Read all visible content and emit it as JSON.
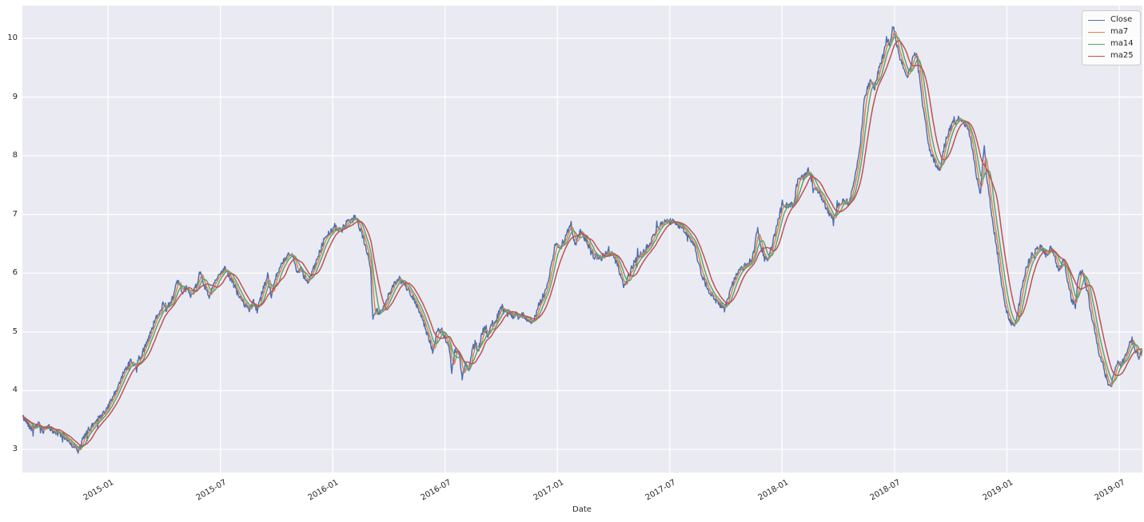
{
  "figure": {
    "background": "#ffffff",
    "plot_background": "#eaeaf2",
    "grid_color": "#ffffff",
    "text_color": "#262626",
    "legend_bg": "#ffffff",
    "legend_border": "#cccccc"
  },
  "chart_data": {
    "type": "line",
    "title": "",
    "xlabel": "Date",
    "ylabel": "",
    "grid": true,
    "legend_position": "upper right",
    "x_unit": "decimal_year",
    "xlim": [
      2014.619,
      2019.603
    ],
    "ylim": [
      2.606,
      10.557
    ],
    "y_ticks": [
      3,
      4,
      5,
      6,
      7,
      8,
      9,
      10
    ],
    "x_ticks": [
      {
        "t": 2015.0,
        "label": "2015-01"
      },
      {
        "t": 2015.5,
        "label": "2015-07"
      },
      {
        "t": 2016.0,
        "label": "2016-01"
      },
      {
        "t": 2016.5,
        "label": "2016-07"
      },
      {
        "t": 2017.0,
        "label": "2017-01"
      },
      {
        "t": 2017.5,
        "label": "2017-07"
      },
      {
        "t": 2018.0,
        "label": "2018-01"
      },
      {
        "t": 2018.5,
        "label": "2018-07"
      },
      {
        "t": 2019.0,
        "label": "2019-01"
      },
      {
        "t": 2019.5,
        "label": "2019-07"
      }
    ],
    "legend": [
      {
        "label": "Close",
        "color": "#4c72b0"
      },
      {
        "label": "ma7",
        "color": "#dd8452"
      },
      {
        "label": "ma14",
        "color": "#55a868"
      },
      {
        "label": "ma25",
        "color": "#c44e52"
      }
    ],
    "series": [
      {
        "name": "Close",
        "color": "#4c72b0",
        "kind": "raw",
        "noise_amp": 0.055,
        "control_points": [
          [
            2014.62,
            3.55
          ],
          [
            2014.64,
            3.47
          ],
          [
            2014.66,
            3.36
          ],
          [
            2014.69,
            3.43
          ],
          [
            2014.71,
            3.3
          ],
          [
            2014.735,
            3.39
          ],
          [
            2014.76,
            3.3
          ],
          [
            2014.8,
            3.23
          ],
          [
            2014.845,
            3.07
          ],
          [
            2014.868,
            2.96
          ],
          [
            2014.89,
            3.18
          ],
          [
            2014.915,
            3.34
          ],
          [
            2014.94,
            3.46
          ],
          [
            2014.97,
            3.56
          ],
          [
            2015.0,
            3.72
          ],
          [
            2015.025,
            3.9
          ],
          [
            2015.05,
            4.12
          ],
          [
            2015.075,
            4.35
          ],
          [
            2015.1,
            4.5
          ],
          [
            2015.125,
            4.4
          ],
          [
            2015.15,
            4.6
          ],
          [
            2015.175,
            4.86
          ],
          [
            2015.2,
            5.1
          ],
          [
            2015.225,
            5.32
          ],
          [
            2015.245,
            5.48
          ],
          [
            2015.26,
            5.39
          ],
          [
            2015.285,
            5.56
          ],
          [
            2015.31,
            5.85
          ],
          [
            2015.33,
            5.69
          ],
          [
            2015.35,
            5.75
          ],
          [
            2015.37,
            5.62
          ],
          [
            2015.39,
            5.77
          ],
          [
            2015.41,
            6.03
          ],
          [
            2015.43,
            5.76
          ],
          [
            2015.45,
            5.6
          ],
          [
            2015.47,
            5.84
          ],
          [
            2015.49,
            5.92
          ],
          [
            2015.52,
            6.1
          ],
          [
            2015.54,
            5.93
          ],
          [
            2015.56,
            5.8
          ],
          [
            2015.58,
            5.62
          ],
          [
            2015.605,
            5.48
          ],
          [
            2015.63,
            5.38
          ],
          [
            2015.65,
            5.52
          ],
          [
            2015.665,
            5.35
          ],
          [
            2015.69,
            5.75
          ],
          [
            2015.71,
            5.96
          ],
          [
            2015.727,
            5.6
          ],
          [
            2015.75,
            5.96
          ],
          [
            2015.775,
            6.16
          ],
          [
            2015.8,
            6.28
          ],
          [
            2015.82,
            6.38
          ],
          [
            2015.838,
            6.02
          ],
          [
            2015.86,
            6.06
          ],
          [
            2015.887,
            5.84
          ],
          [
            2015.91,
            6.02
          ],
          [
            2015.935,
            6.28
          ],
          [
            2015.96,
            6.55
          ],
          [
            2015.985,
            6.7
          ],
          [
            2016.01,
            6.8
          ],
          [
            2016.035,
            6.71
          ],
          [
            2016.06,
            6.84
          ],
          [
            2016.085,
            6.9
          ],
          [
            2016.1,
            6.96
          ],
          [
            2016.125,
            6.72
          ],
          [
            2016.15,
            6.42
          ],
          [
            2016.168,
            6.1
          ],
          [
            2016.178,
            5.25
          ],
          [
            2016.195,
            5.4
          ],
          [
            2016.21,
            5.28
          ],
          [
            2016.235,
            5.52
          ],
          [
            2016.26,
            5.72
          ],
          [
            2016.28,
            5.84
          ],
          [
            2016.295,
            5.9
          ],
          [
            2016.32,
            5.8
          ],
          [
            2016.345,
            5.68
          ],
          [
            2016.37,
            5.5
          ],
          [
            2016.395,
            5.28
          ],
          [
            2016.42,
            4.95
          ],
          [
            2016.447,
            4.66
          ],
          [
            2016.465,
            5.02
          ],
          [
            2016.485,
            5.02
          ],
          [
            2016.505,
            4.85
          ],
          [
            2016.52,
            4.74
          ],
          [
            2016.529,
            4.3
          ],
          [
            2016.545,
            4.66
          ],
          [
            2016.56,
            4.72
          ],
          [
            2016.576,
            4.22
          ],
          [
            2016.59,
            4.46
          ],
          [
            2016.605,
            4.35
          ],
          [
            2016.62,
            4.69
          ],
          [
            2016.635,
            4.83
          ],
          [
            2016.648,
            4.65
          ],
          [
            2016.662,
            4.96
          ],
          [
            2016.678,
            5.07
          ],
          [
            2016.69,
            4.87
          ],
          [
            2016.705,
            5.17
          ],
          [
            2016.72,
            5.1
          ],
          [
            2016.74,
            5.35
          ],
          [
            2016.755,
            5.42
          ],
          [
            2016.77,
            5.31
          ],
          [
            2016.785,
            5.38
          ],
          [
            2016.8,
            5.26
          ],
          [
            2016.815,
            5.31
          ],
          [
            2016.83,
            5.24
          ],
          [
            2016.845,
            5.29
          ],
          [
            2016.868,
            5.2
          ],
          [
            2016.892,
            5.15
          ],
          [
            2016.92,
            5.5
          ],
          [
            2016.95,
            5.7
          ],
          [
            2016.972,
            6.12
          ],
          [
            2016.99,
            6.48
          ],
          [
            2017.012,
            6.42
          ],
          [
            2017.035,
            6.62
          ],
          [
            2017.06,
            6.86
          ],
          [
            2017.08,
            6.42
          ],
          [
            2017.1,
            6.74
          ],
          [
            2017.13,
            6.54
          ],
          [
            2017.16,
            6.3
          ],
          [
            2017.19,
            6.25
          ],
          [
            2017.22,
            6.35
          ],
          [
            2017.25,
            6.31
          ],
          [
            2017.275,
            6.05
          ],
          [
            2017.298,
            5.75
          ],
          [
            2017.32,
            6.0
          ],
          [
            2017.35,
            6.26
          ],
          [
            2017.38,
            6.35
          ],
          [
            2017.41,
            6.5
          ],
          [
            2017.44,
            6.72
          ],
          [
            2017.47,
            6.86
          ],
          [
            2017.5,
            6.88
          ],
          [
            2017.53,
            6.83
          ],
          [
            2017.555,
            6.8
          ],
          [
            2017.58,
            6.65
          ],
          [
            2017.61,
            6.45
          ],
          [
            2017.64,
            6.0
          ],
          [
            2017.67,
            5.72
          ],
          [
            2017.7,
            5.56
          ],
          [
            2017.745,
            5.38
          ],
          [
            2017.77,
            5.72
          ],
          [
            2017.8,
            6.02
          ],
          [
            2017.83,
            6.1
          ],
          [
            2017.86,
            6.22
          ],
          [
            2017.875,
            6.35
          ],
          [
            2017.891,
            6.8
          ],
          [
            2017.91,
            6.32
          ],
          [
            2017.935,
            6.22
          ],
          [
            2017.96,
            6.55
          ],
          [
            2017.985,
            6.95
          ],
          [
            2018.0,
            7.2
          ],
          [
            2018.02,
            7.15
          ],
          [
            2018.05,
            7.16
          ],
          [
            2018.07,
            7.6
          ],
          [
            2018.09,
            7.62
          ],
          [
            2018.117,
            7.75
          ],
          [
            2018.14,
            7.48
          ],
          [
            2018.165,
            7.35
          ],
          [
            2018.19,
            7.16
          ],
          [
            2018.212,
            6.98
          ],
          [
            2018.228,
            6.91
          ],
          [
            2018.25,
            7.18
          ],
          [
            2018.277,
            7.23
          ],
          [
            2018.3,
            7.2
          ],
          [
            2018.323,
            7.6
          ],
          [
            2018.348,
            8.2
          ],
          [
            2018.365,
            8.95
          ],
          [
            2018.394,
            9.32
          ],
          [
            2018.41,
            9.16
          ],
          [
            2018.425,
            9.4
          ],
          [
            2018.45,
            9.7
          ],
          [
            2018.465,
            10.0
          ],
          [
            2018.478,
            9.88
          ],
          [
            2018.494,
            10.2
          ],
          [
            2018.51,
            9.88
          ],
          [
            2018.526,
            9.63
          ],
          [
            2018.545,
            9.45
          ],
          [
            2018.561,
            9.36
          ],
          [
            2018.58,
            9.67
          ],
          [
            2018.597,
            9.73
          ],
          [
            2018.61,
            9.36
          ],
          [
            2018.625,
            8.9
          ],
          [
            2018.64,
            8.55
          ],
          [
            2018.655,
            8.1
          ],
          [
            2018.67,
            7.98
          ],
          [
            2018.69,
            7.8
          ],
          [
            2018.704,
            7.76
          ],
          [
            2018.72,
            8.15
          ],
          [
            2018.74,
            8.4
          ],
          [
            2018.76,
            8.55
          ],
          [
            2018.785,
            8.62
          ],
          [
            2018.81,
            8.55
          ],
          [
            2018.83,
            8.45
          ],
          [
            2018.85,
            8.05
          ],
          [
            2018.867,
            7.6
          ],
          [
            2018.882,
            7.35
          ],
          [
            2018.899,
            8.2
          ],
          [
            2018.914,
            7.5
          ],
          [
            2018.935,
            6.95
          ],
          [
            2018.955,
            6.4
          ],
          [
            2018.972,
            5.95
          ],
          [
            2018.986,
            5.6
          ],
          [
            2019.0,
            5.32
          ],
          [
            2019.018,
            5.15
          ],
          [
            2019.036,
            5.08
          ],
          [
            2019.055,
            5.48
          ],
          [
            2019.075,
            5.92
          ],
          [
            2019.095,
            6.18
          ],
          [
            2019.11,
            6.3
          ],
          [
            2019.135,
            6.4
          ],
          [
            2019.155,
            6.45
          ],
          [
            2019.175,
            6.3
          ],
          [
            2019.195,
            6.42
          ],
          [
            2019.213,
            6.28
          ],
          [
            2019.232,
            6.02
          ],
          [
            2019.252,
            6.28
          ],
          [
            2019.272,
            5.85
          ],
          [
            2019.29,
            5.52
          ],
          [
            2019.305,
            5.45
          ],
          [
            2019.318,
            5.95
          ],
          [
            2019.335,
            6.02
          ],
          [
            2019.35,
            5.82
          ],
          [
            2019.365,
            5.55
          ],
          [
            2019.378,
            5.25
          ],
          [
            2019.392,
            5.02
          ],
          [
            2019.41,
            4.62
          ],
          [
            2019.43,
            4.4
          ],
          [
            2019.447,
            4.15
          ],
          [
            2019.462,
            4.05
          ],
          [
            2019.478,
            4.3
          ],
          [
            2019.493,
            4.5
          ],
          [
            2019.508,
            4.42
          ],
          [
            2019.523,
            4.56
          ],
          [
            2019.54,
            4.76
          ],
          [
            2019.556,
            4.87
          ],
          [
            2019.572,
            4.7
          ],
          [
            2019.588,
            4.56
          ],
          [
            2019.602,
            4.66
          ],
          [
            2019.611,
            4.72
          ]
        ]
      },
      {
        "name": "ma7",
        "color": "#dd8452",
        "kind": "rolling_mean",
        "window_days": 7,
        "of": "Close"
      },
      {
        "name": "ma14",
        "color": "#55a868",
        "kind": "rolling_mean",
        "window_days": 14,
        "of": "Close"
      },
      {
        "name": "ma25",
        "color": "#c44e52",
        "kind": "rolling_mean",
        "window_days": 25,
        "of": "Close"
      }
    ]
  }
}
